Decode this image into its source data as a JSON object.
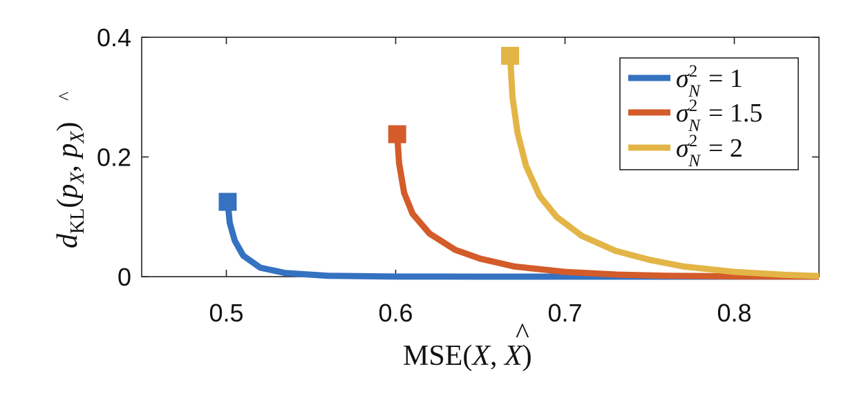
{
  "chart_data": {
    "type": "line",
    "title": "",
    "xlabel": {
      "prefix": "MSE(",
      "x1": "X",
      "separator": ", ",
      "x2": "X",
      "hat": "^",
      "suffix": ")"
    },
    "ylabel": {
      "d": "d",
      "d_subscript": "KL",
      "open": "(",
      "p1": "p",
      "p1_subscript": "X",
      "separator": ", ",
      "p2": "p",
      "p2_subscript": "X",
      "p2_hat": "^",
      "close": ")"
    },
    "xlim": [
      0.45,
      0.85
    ],
    "ylim": [
      0,
      0.4
    ],
    "xticks": [
      0.5,
      0.6,
      0.7,
      0.8
    ],
    "xtick_labels": [
      "0.5",
      "0.6",
      "0.7",
      "0.8"
    ],
    "yticks": [
      0,
      0.2,
      0.4
    ],
    "ytick_labels": [
      "0",
      "0.2",
      "0.4"
    ],
    "grid": false,
    "legend_position": "top-right",
    "series": [
      {
        "name": "σ_N^2 = 1",
        "legend": {
          "sigma": "σ",
          "superscript": "2",
          "subscript": "N",
          "equals": "= 1"
        },
        "color": "#3572C0",
        "marker": "square",
        "points": [
          [
            0.5008,
            0.125
          ],
          [
            0.502,
            0.09
          ],
          [
            0.505,
            0.06
          ],
          [
            0.51,
            0.035
          ],
          [
            0.52,
            0.015
          ],
          [
            0.535,
            0.006
          ],
          [
            0.56,
            0.0015
          ],
          [
            0.6,
            0.0002
          ],
          [
            0.65,
            0.0
          ],
          [
            0.7,
            0.0
          ],
          [
            0.75,
            0.0
          ],
          [
            0.8,
            0.0
          ],
          [
            0.85,
            0.0
          ]
        ]
      },
      {
        "name": "σ_N^2 = 1.5",
        "legend": {
          "sigma": "σ",
          "superscript": "2",
          "subscript": "N",
          "equals": "= 1.5"
        },
        "color": "#D45B2A",
        "marker": "square",
        "points": [
          [
            0.6009,
            0.238
          ],
          [
            0.602,
            0.19
          ],
          [
            0.605,
            0.14
          ],
          [
            0.61,
            0.105
          ],
          [
            0.62,
            0.072
          ],
          [
            0.635,
            0.045
          ],
          [
            0.65,
            0.03
          ],
          [
            0.67,
            0.017
          ],
          [
            0.7,
            0.008
          ],
          [
            0.73,
            0.0035
          ],
          [
            0.76,
            0.0015
          ],
          [
            0.8,
            0.0005
          ],
          [
            0.85,
            0.0001
          ]
        ]
      },
      {
        "name": "σ_N^2 = 2",
        "legend": {
          "sigma": "σ",
          "superscript": "2",
          "subscript": "N",
          "equals": "= 2"
        },
        "color": "#E3B546",
        "marker": "square",
        "points": [
          [
            0.6676,
            0.369
          ],
          [
            0.669,
            0.3
          ],
          [
            0.672,
            0.24
          ],
          [
            0.677,
            0.185
          ],
          [
            0.685,
            0.135
          ],
          [
            0.695,
            0.1
          ],
          [
            0.71,
            0.068
          ],
          [
            0.73,
            0.043
          ],
          [
            0.75,
            0.028
          ],
          [
            0.77,
            0.017
          ],
          [
            0.8,
            0.008
          ],
          [
            0.83,
            0.003
          ],
          [
            0.85,
            0.001
          ]
        ]
      }
    ]
  }
}
